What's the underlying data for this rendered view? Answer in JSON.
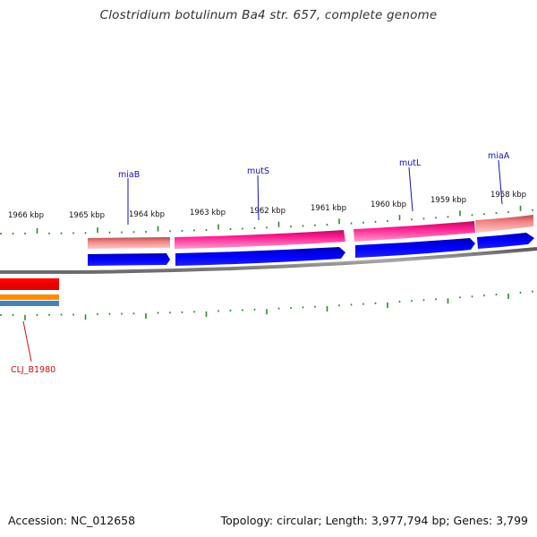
{
  "title": "Clostridium botulinum Ba4 str. 657, complete genome",
  "footer": {
    "accession": "Accession: NC_012658",
    "summary": "Topology: circular; Length: 3,977,794 bp; Genes: 3,799"
  },
  "colors": {
    "backbone": "#8c8c8c",
    "tick": "#2a8a2a",
    "gene_label": "#1010c0",
    "cds_label": "#cc1111",
    "cds_feature": "#0000ee",
    "gene_feature": "#ff1493",
    "gene_feature_light": "#f08080"
  },
  "scale_labels": [
    "1966 kbp",
    "1965 kbp",
    "1964 kbp",
    "1963 kbp",
    "1962 kbp",
    "1961 kbp",
    "1960 kbp",
    "1959 kbp",
    "1958 kbp"
  ],
  "gene_labels": [
    "miaB",
    "mutS",
    "mutL",
    "miaA"
  ],
  "locus_labels": [
    "CLJ_B1980"
  ]
}
